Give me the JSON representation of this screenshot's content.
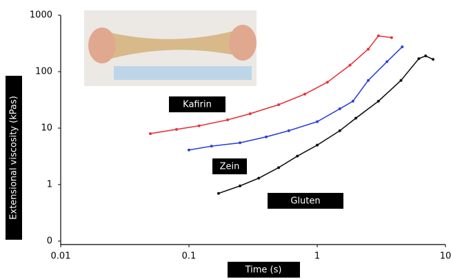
{
  "chart_data": {
    "type": "line",
    "x_label": "Time (s)",
    "y_label": "Extensional viscosity (kPas)",
    "log_x": true,
    "log_y": true,
    "xlim": [
      0.01,
      10
    ],
    "xticks": [
      0.01,
      0.1,
      1,
      10
    ],
    "ylim": [
      0.1,
      1000
    ],
    "yticks": [
      {
        "value": 0.1,
        "label": "0"
      },
      1,
      10,
      100,
      1000
    ],
    "series": [
      {
        "name": "Kafirin",
        "color": "#e8303a",
        "x": [
          0.05,
          0.08,
          0.12,
          0.2,
          0.3,
          0.5,
          0.8,
          1.2,
          1.8,
          2.5,
          3.0,
          3.8
        ],
        "values": [
          8,
          9.5,
          11,
          14,
          18,
          26,
          40,
          65,
          130,
          250,
          430,
          400
        ]
      },
      {
        "name": "Zein",
        "color": "#2f3fd8",
        "x": [
          0.1,
          0.15,
          0.25,
          0.4,
          0.6,
          1,
          1.5,
          1.9,
          2.5,
          3.5,
          4.6
        ],
        "values": [
          4.1,
          4.8,
          5.5,
          7,
          9,
          13,
          22,
          30,
          70,
          150,
          275
        ]
      },
      {
        "name": "Gluten",
        "color": "#111111",
        "x": [
          0.17,
          0.25,
          0.35,
          0.5,
          0.7,
          1,
          1.5,
          2,
          3,
          4.5,
          6.2,
          7,
          8
        ],
        "values": [
          0.7,
          0.95,
          1.3,
          2,
          3.2,
          5,
          9,
          15,
          30,
          70,
          170,
          190,
          165
        ]
      }
    ]
  }
}
